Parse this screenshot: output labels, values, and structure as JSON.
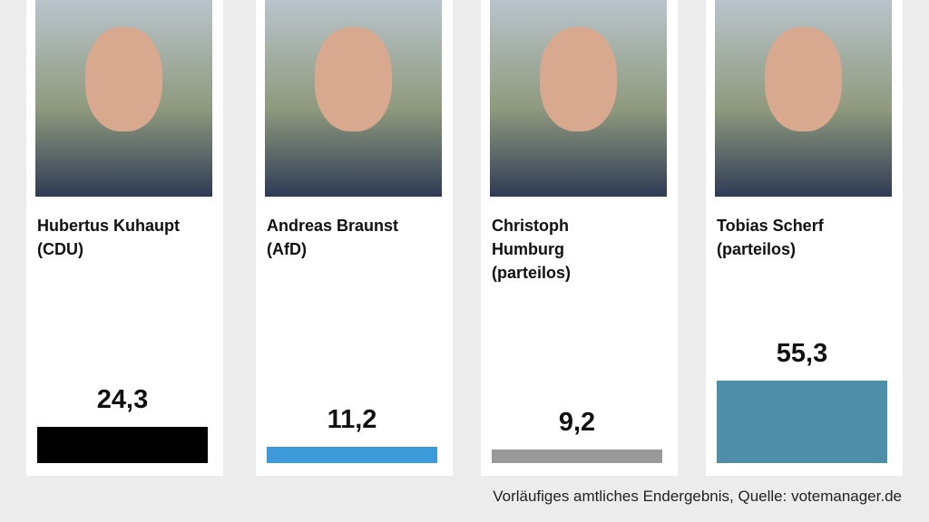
{
  "chart_data": {
    "type": "bar",
    "categories": [
      "Hubertus Kuhaupt",
      "Andreas Braunst",
      "Christoph Humburg",
      "Tobias Scherf"
    ],
    "parties": [
      "(CDU)",
      "(AfD)",
      "(parteilos)",
      "(parteilos)"
    ],
    "values": [
      24.3,
      11.2,
      9.2,
      55.3
    ],
    "value_labels": [
      "24,3",
      "11,2",
      "9,2",
      "55,3"
    ],
    "colors": [
      "#000000",
      "#3d9ad8",
      "#999999",
      "#4f8ea8"
    ],
    "source": "Vorläufiges amtliches Endergebnis, Quelle: votemanager.de"
  }
}
